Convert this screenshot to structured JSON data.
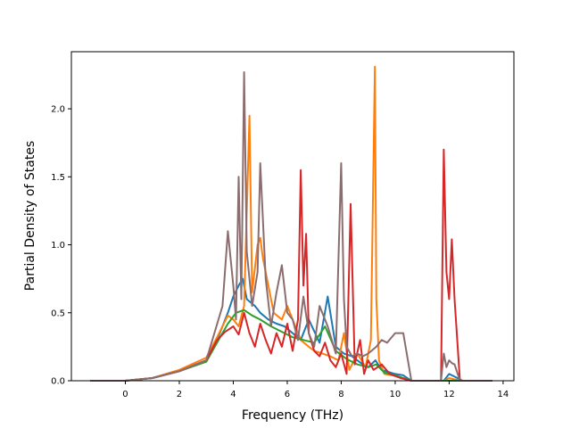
{
  "chart_data": {
    "type": "line",
    "title": "",
    "xlabel": "Frequency (THz)",
    "ylabel": "Partial Density of States",
    "xlim": [
      -2.0,
      14.4
    ],
    "ylim": [
      0.0,
      2.42
    ],
    "x_ticks": [
      0,
      2,
      4,
      6,
      8,
      10,
      12,
      14
    ],
    "x_tick_labels": [
      "0",
      "2",
      "4",
      "6",
      "8",
      "10",
      "12",
      "14"
    ],
    "y_ticks": [
      0.0,
      0.5,
      1.0,
      1.5,
      2.0
    ],
    "y_tick_labels": [
      "0.0",
      "0.5",
      "1.0",
      "1.5",
      "2.0"
    ],
    "grid": false,
    "legend": "none",
    "series": [
      {
        "color": "#1f77b4",
        "x": [
          -1.3,
          0.0,
          1.0,
          2.0,
          3.0,
          3.4,
          3.8,
          4.0,
          4.2,
          4.35,
          4.5,
          4.8,
          5.0,
          5.3,
          5.6,
          5.9,
          6.2,
          6.5,
          6.8,
          7.2,
          7.5,
          7.8,
          8.1,
          8.4,
          8.8,
          9.0,
          9.27,
          9.5,
          10.0,
          10.3,
          10.6,
          11.8,
          12.0,
          12.2,
          12.5,
          13.6
        ],
        "y": [
          0.0,
          0.0,
          0.02,
          0.07,
          0.15,
          0.3,
          0.5,
          0.62,
          0.7,
          0.75,
          0.6,
          0.55,
          0.5,
          0.45,
          0.42,
          0.4,
          0.35,
          0.3,
          0.45,
          0.28,
          0.62,
          0.25,
          0.2,
          0.18,
          0.12,
          0.1,
          0.15,
          0.08,
          0.05,
          0.04,
          0.0,
          0.0,
          0.05,
          0.03,
          0.0,
          0.0
        ]
      },
      {
        "color": "#ff7f0e",
        "x": [
          -1.3,
          0.0,
          1.0,
          2.0,
          3.0,
          3.4,
          3.8,
          4.0,
          4.2,
          4.4,
          4.6,
          4.7,
          4.9,
          5.0,
          5.1,
          5.3,
          5.5,
          5.8,
          6.0,
          6.3,
          6.5,
          6.8,
          7.0,
          7.3,
          7.6,
          7.9,
          8.1,
          8.3,
          8.6,
          8.9,
          9.1,
          9.25,
          9.3,
          9.4,
          9.6,
          9.9,
          10.3,
          10.6,
          11.8,
          12.0,
          12.2,
          12.5,
          13.6
        ],
        "y": [
          0.0,
          0.0,
          0.02,
          0.08,
          0.17,
          0.32,
          0.48,
          0.45,
          0.4,
          0.55,
          1.95,
          0.65,
          1.0,
          1.05,
          0.9,
          0.7,
          0.5,
          0.45,
          0.55,
          0.4,
          0.3,
          0.25,
          0.22,
          0.2,
          0.18,
          0.15,
          0.35,
          0.08,
          0.2,
          0.1,
          0.3,
          2.31,
          0.6,
          0.15,
          0.05,
          0.04,
          0.02,
          0.0,
          0.0,
          0.02,
          0.01,
          0.0,
          0.0
        ]
      },
      {
        "color": "#2ca02c",
        "x": [
          -1.3,
          0.0,
          1.0,
          2.0,
          3.0,
          3.4,
          3.8,
          4.1,
          4.4,
          4.7,
          5.0,
          5.4,
          5.8,
          6.2,
          6.6,
          7.0,
          7.4,
          7.8,
          8.2,
          8.6,
          9.0,
          9.3,
          9.6,
          10.0,
          10.6,
          13.6
        ],
        "y": [
          0.0,
          0.0,
          0.02,
          0.07,
          0.14,
          0.28,
          0.42,
          0.5,
          0.52,
          0.48,
          0.45,
          0.4,
          0.36,
          0.32,
          0.3,
          0.28,
          0.4,
          0.22,
          0.16,
          0.12,
          0.1,
          0.12,
          0.06,
          0.04,
          0.0,
          0.0
        ]
      },
      {
        "color": "#d62728",
        "x": [
          -1.3,
          0.0,
          1.0,
          2.0,
          3.0,
          3.4,
          3.7,
          4.0,
          4.2,
          4.4,
          4.6,
          4.8,
          5.0,
          5.2,
          5.4,
          5.6,
          5.8,
          6.0,
          6.2,
          6.4,
          6.5,
          6.6,
          6.7,
          6.8,
          7.0,
          7.2,
          7.4,
          7.6,
          7.8,
          8.0,
          8.2,
          8.35,
          8.5,
          8.7,
          8.85,
          9.0,
          9.2,
          9.5,
          9.8,
          10.2,
          10.6,
          11.7,
          11.8,
          11.9,
          12.0,
          12.1,
          12.2,
          12.4,
          13.6
        ],
        "y": [
          0.0,
          0.0,
          0.02,
          0.07,
          0.15,
          0.3,
          0.36,
          0.4,
          0.34,
          0.5,
          0.35,
          0.25,
          0.42,
          0.3,
          0.2,
          0.35,
          0.25,
          0.42,
          0.22,
          0.45,
          1.55,
          0.7,
          1.08,
          0.35,
          0.22,
          0.18,
          0.28,
          0.15,
          0.1,
          0.2,
          0.05,
          1.3,
          0.12,
          0.3,
          0.05,
          0.15,
          0.08,
          0.12,
          0.05,
          0.02,
          0.0,
          0.0,
          1.7,
          0.8,
          0.6,
          1.04,
          0.6,
          0.0,
          0.0
        ]
      },
      {
        "color": "#8c6d6f",
        "x": [
          -1.3,
          0.0,
          1.0,
          2.0,
          3.0,
          3.3,
          3.6,
          3.8,
          4.0,
          4.1,
          4.2,
          4.3,
          4.4,
          4.5,
          4.7,
          4.9,
          5.0,
          5.2,
          5.4,
          5.6,
          5.8,
          6.0,
          6.2,
          6.4,
          6.6,
          6.8,
          7.0,
          7.2,
          7.5,
          7.8,
          8.0,
          8.1,
          8.2,
          8.4,
          8.6,
          8.8,
          9.0,
          9.3,
          9.5,
          9.7,
          10.0,
          10.3,
          10.6,
          11.7,
          11.8,
          11.9,
          12.0,
          12.1,
          12.2,
          12.4,
          13.6
        ],
        "y": [
          0.0,
          0.0,
          0.02,
          0.07,
          0.15,
          0.35,
          0.55,
          1.1,
          0.7,
          0.45,
          1.5,
          0.6,
          2.27,
          0.95,
          0.55,
          0.8,
          1.6,
          0.75,
          0.4,
          0.65,
          0.85,
          0.5,
          0.45,
          0.3,
          0.62,
          0.35,
          0.25,
          0.55,
          0.4,
          0.2,
          1.6,
          0.6,
          0.25,
          0.18,
          0.2,
          0.18,
          0.2,
          0.25,
          0.3,
          0.28,
          0.35,
          0.35,
          0.0,
          0.0,
          0.2,
          0.1,
          0.15,
          0.13,
          0.12,
          0.0,
          0.0
        ]
      }
    ]
  }
}
